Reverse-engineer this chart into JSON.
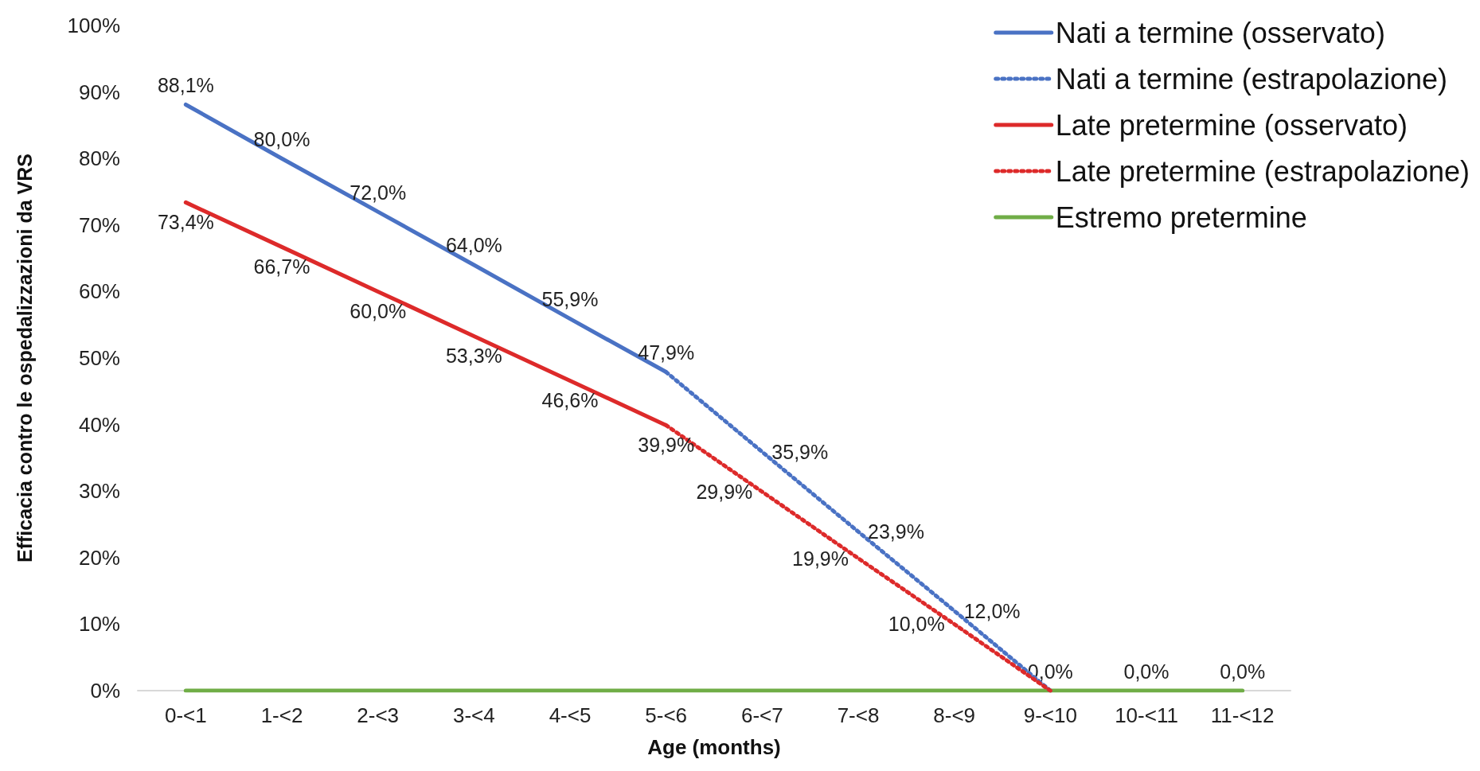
{
  "chart_data": {
    "type": "line",
    "xlabel": "Age (months)",
    "ylabel": "Efficacia contro le ospedalizzazioni da VRS",
    "categories": [
      "0-<1",
      "1-<2",
      "2-<3",
      "3-<4",
      "4-<5",
      "5-<6",
      "6-<7",
      "7-<8",
      "8-<9",
      "9-<10",
      "10-<11",
      "11-<12"
    ],
    "ylim": [
      0,
      100
    ],
    "yticks": [
      {
        "value": 0,
        "label": "0%"
      },
      {
        "value": 10,
        "label": "10%"
      },
      {
        "value": 20,
        "label": "20%"
      },
      {
        "value": 30,
        "label": "30%"
      },
      {
        "value": 40,
        "label": "40%"
      },
      {
        "value": 50,
        "label": "50%"
      },
      {
        "value": 60,
        "label": "60%"
      },
      {
        "value": 70,
        "label": "70%"
      },
      {
        "value": 80,
        "label": "80%"
      },
      {
        "value": 90,
        "label": "90%"
      },
      {
        "value": 100,
        "label": "100%"
      }
    ],
    "legend": "top right",
    "marker": "none",
    "series": [
      {
        "name": "Nati a termine (osservato)",
        "color": "#4a72c4",
        "line_style": "solid",
        "values": [
          88.1,
          80.0,
          72.0,
          64.0,
          55.9,
          47.9,
          null,
          null,
          null,
          null,
          null,
          null
        ],
        "value_labels": [
          "88,1%",
          "80,0%",
          "72,0%",
          "64,0%",
          "55,9%",
          "47,9%",
          null,
          null,
          null,
          null,
          null,
          null
        ]
      },
      {
        "name": "Nati a termine (estrapolazione)",
        "color": "#4a72c4",
        "line_style": "dotted",
        "values": [
          null,
          null,
          null,
          null,
          null,
          47.9,
          35.9,
          23.9,
          12.0,
          0.0,
          null,
          null
        ],
        "value_labels": [
          null,
          null,
          null,
          null,
          null,
          null,
          "35,9%",
          "23,9%",
          "12,0%",
          null,
          null,
          null
        ]
      },
      {
        "name": "Late pretermine (osservato)",
        "color": "#dd2a2a",
        "line_style": "solid",
        "values": [
          73.4,
          66.7,
          60.0,
          53.3,
          46.6,
          39.9,
          null,
          null,
          null,
          null,
          null,
          null
        ],
        "value_labels": [
          "73,4%",
          "66,7%",
          "60,0%",
          "53,3%",
          "46,6%",
          "39,9%",
          null,
          null,
          null,
          null,
          null,
          null
        ]
      },
      {
        "name": "Late pretermine (estrapolazione)",
        "color": "#dd2a2a",
        "line_style": "dotted",
        "values": [
          null,
          null,
          null,
          null,
          null,
          39.9,
          29.9,
          19.9,
          10.0,
          0.0,
          null,
          null
        ],
        "value_labels": [
          null,
          null,
          null,
          null,
          null,
          null,
          "29,9%",
          "19,9%",
          "10,0%",
          null,
          null,
          null
        ]
      },
      {
        "name": "Estremo pretermine",
        "color": "#70ad47",
        "line_style": "solid",
        "values": [
          0,
          0,
          0,
          0,
          0,
          0,
          0,
          0,
          0,
          0,
          0,
          0
        ],
        "value_labels": [
          null,
          null,
          null,
          null,
          null,
          null,
          null,
          null,
          null,
          "0,0%",
          "0,0%",
          "0,0%"
        ]
      }
    ]
  }
}
